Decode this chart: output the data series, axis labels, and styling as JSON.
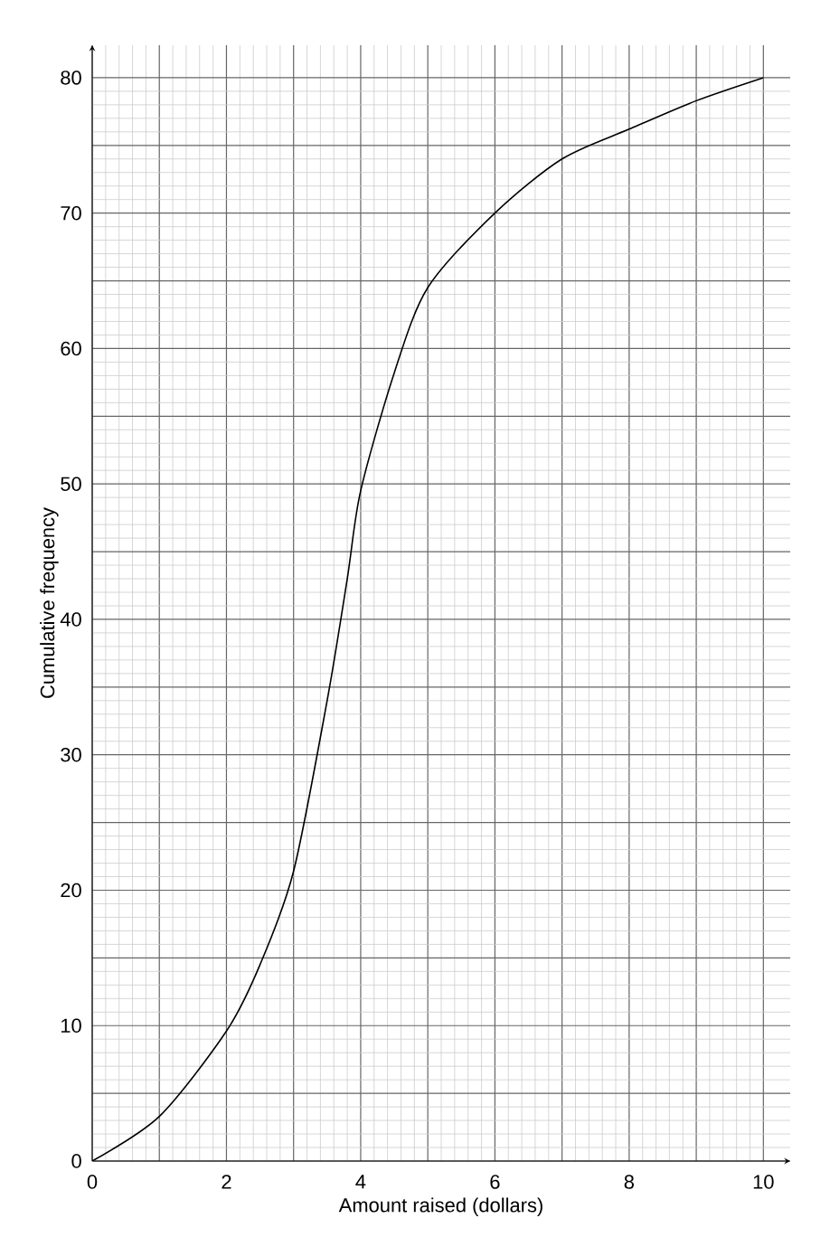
{
  "chart_data": {
    "type": "line",
    "xlabel": "Amount raised (dollars)",
    "ylabel": "Cumulative frequency",
    "xlim": [
      0,
      10
    ],
    "ylim": [
      0,
      80
    ],
    "xticks": [
      0,
      {
        "value": 1,
        "label": null
      },
      2,
      {
        "value": 3,
        "label": null
      },
      4,
      {
        "value": 5,
        "label": null
      },
      6,
      {
        "value": 7,
        "label": null
      },
      8,
      {
        "value": 9,
        "label": null
      },
      10
    ],
    "yticks": [
      0,
      {
        "value": 5,
        "label": null
      },
      10,
      {
        "value": 15,
        "label": null
      },
      20,
      {
        "value": 25,
        "label": null
      },
      30,
      {
        "value": 35,
        "label": null
      },
      40,
      {
        "value": 45,
        "label": null
      },
      50,
      {
        "value": 55,
        "label": null
      },
      60,
      {
        "value": 65,
        "label": null
      },
      70,
      {
        "value": 75,
        "label": null
      },
      80
    ],
    "grid": true,
    "marker": "none",
    "line_style": "solid",
    "series": [
      {
        "color": "#000000",
        "x": [
          0,
          1,
          2,
          2.5,
          3,
          3.5,
          3.8,
          4,
          4.5,
          5,
          6,
          7,
          8,
          9,
          10
        ],
        "values": [
          0,
          3.3,
          9.6,
          14.5,
          21.4,
          34,
          43,
          49.5,
          58.2,
          64.5,
          70,
          74,
          76.2,
          78.3,
          80
        ]
      }
    ]
  }
}
